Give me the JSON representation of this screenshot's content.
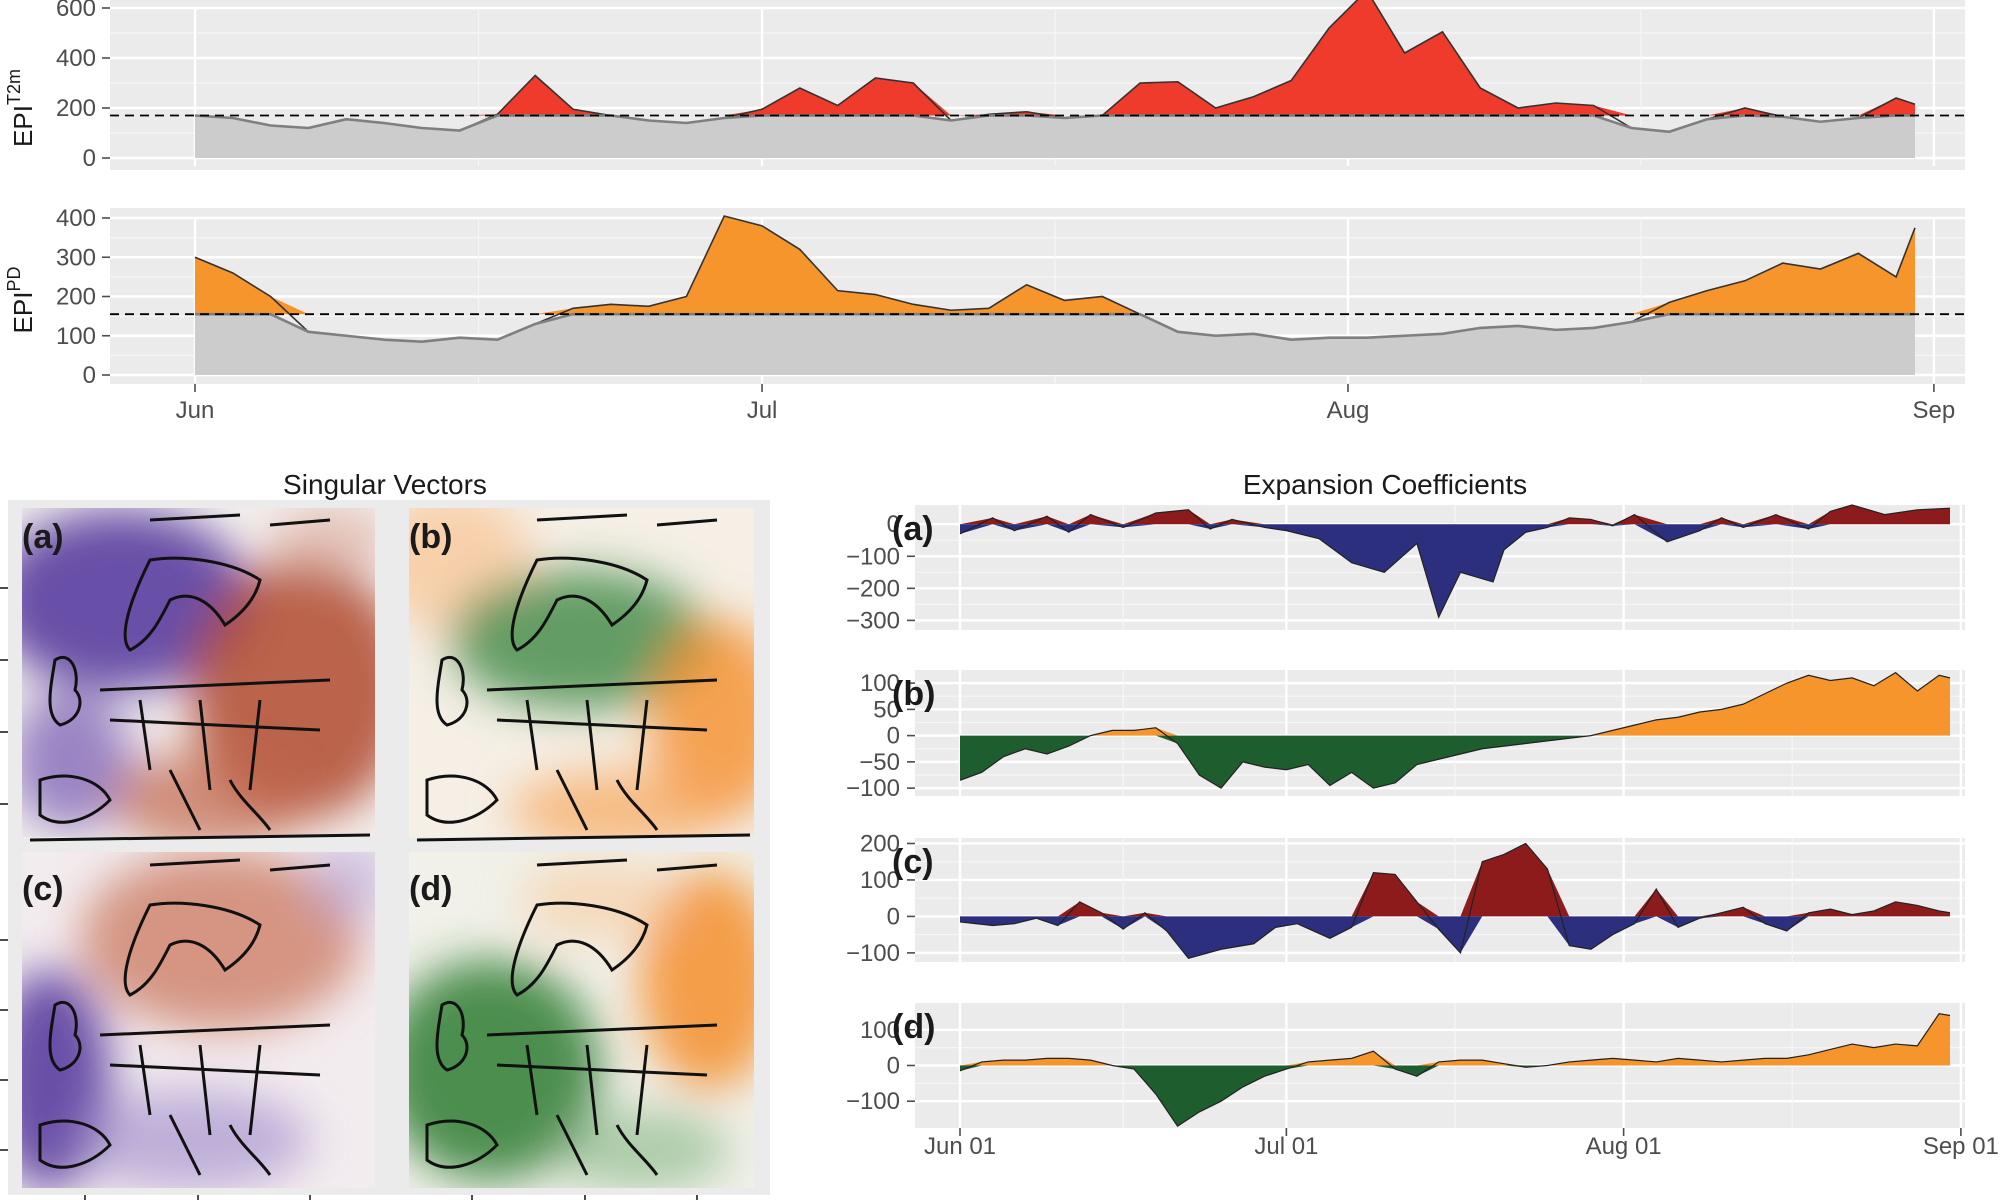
{
  "colors": {
    "t2m_fill": "#ef3b2c",
    "pd_fill": "#f7952d",
    "below_fill": "#cccccc",
    "below_line": "#7f7f7f",
    "pos_red": "#8e1b1b",
    "neg_blue": "#2b2f7d",
    "pos_orange": "#f7952d",
    "neg_green": "#1e5e2e",
    "diverging_purple": "#5a3ea0",
    "diverging_red": "#b04a2f",
    "diverging_green": "#2e7d32",
    "diverging_orange": "#f58a1f"
  },
  "chart_data": [
    {
      "id": "epi_t2m",
      "type": "area",
      "ylabel": "EPI",
      "ylabel_sup": "T2m",
      "x_axis": "day_of_summer",
      "x_range": [
        0,
        91
      ],
      "ylim": [
        0,
        600
      ],
      "yticks": [
        "0",
        "200",
        "400",
        "600"
      ],
      "threshold": 170,
      "x": [
        0,
        2,
        4,
        6,
        8,
        10,
        12,
        14,
        16,
        18,
        20,
        22,
        24,
        26,
        28,
        30,
        32,
        34,
        36,
        38,
        40,
        42,
        44,
        46,
        48,
        50,
        52,
        54,
        56,
        58,
        60,
        62,
        64,
        66,
        68,
        70,
        72,
        74,
        76,
        78,
        80,
        82,
        84,
        86,
        88,
        90,
        91
      ],
      "values": [
        170,
        160,
        130,
        120,
        155,
        140,
        120,
        110,
        175,
        330,
        195,
        170,
        150,
        140,
        160,
        195,
        280,
        210,
        320,
        300,
        150,
        175,
        185,
        160,
        170,
        300,
        305,
        200,
        245,
        310,
        520,
        670,
        420,
        505,
        280,
        200,
        220,
        210,
        120,
        105,
        155,
        200,
        165,
        145,
        160,
        240,
        215
      ],
      "grid": true
    },
    {
      "id": "epi_pd",
      "type": "area",
      "ylabel": "EPI",
      "ylabel_sup": "PD",
      "x_axis": "day_of_summer",
      "x_range": [
        0,
        91
      ],
      "ylim": [
        0,
        400
      ],
      "yticks": [
        "0",
        "100",
        "200",
        "300",
        "400"
      ],
      "threshold": 155,
      "x": [
        0,
        2,
        4,
        6,
        8,
        10,
        12,
        14,
        16,
        18,
        20,
        22,
        24,
        26,
        28,
        30,
        32,
        34,
        36,
        38,
        40,
        42,
        44,
        46,
        48,
        50,
        52,
        54,
        56,
        58,
        60,
        62,
        64,
        66,
        68,
        70,
        72,
        74,
        76,
        78,
        80,
        82,
        84,
        86,
        88,
        90,
        91
      ],
      "values": [
        300,
        260,
        200,
        110,
        100,
        90,
        85,
        95,
        90,
        130,
        170,
        180,
        175,
        200,
        405,
        380,
        320,
        215,
        205,
        180,
        165,
        170,
        230,
        190,
        200,
        155,
        110,
        100,
        105,
        90,
        95,
        95,
        100,
        105,
        120,
        125,
        115,
        120,
        135,
        185,
        215,
        240,
        285,
        270,
        310,
        250,
        375
      ],
      "grid": true
    },
    {
      "id": "ec_a",
      "type": "area",
      "panel_label": "(a)",
      "ylim": [
        -330,
        60
      ],
      "yticks": [
        "0",
        "−100",
        "−200",
        "−300"
      ],
      "x": [
        0,
        3,
        5,
        8,
        10,
        12,
        15,
        18,
        21,
        23,
        25,
        28,
        30,
        33,
        36,
        39,
        42,
        44,
        46,
        49,
        50,
        52,
        54,
        56,
        58,
        60,
        62,
        65,
        68,
        70,
        72,
        75,
        78,
        80,
        82,
        85,
        88,
        91
      ],
      "values": [
        -30,
        20,
        -20,
        25,
        -25,
        30,
        -10,
        35,
        45,
        -15,
        15,
        -10,
        -20,
        -45,
        -120,
        -150,
        -60,
        -290,
        -150,
        -180,
        -80,
        -25,
        -10,
        20,
        15,
        -5,
        30,
        -55,
        -20,
        20,
        -10,
        30,
        -15,
        40,
        60,
        30,
        45,
        50
      ],
      "pos_color_key": "pos_red",
      "neg_color_key": "neg_blue",
      "grid": true
    },
    {
      "id": "ec_b",
      "type": "area",
      "panel_label": "(b)",
      "ylim": [
        -115,
        125
      ],
      "yticks": [
        "100",
        "50",
        "0",
        "−50",
        "−100"
      ],
      "x": [
        0,
        2,
        4,
        6,
        8,
        10,
        12,
        14,
        16,
        18,
        20,
        22,
        24,
        26,
        28,
        30,
        32,
        34,
        36,
        38,
        40,
        42,
        44,
        46,
        48,
        50,
        52,
        54,
        56,
        58,
        60,
        62,
        64,
        66,
        68,
        70,
        72,
        74,
        76,
        78,
        80,
        82,
        84,
        86,
        88,
        90,
        91
      ],
      "values": [
        -85,
        -70,
        -40,
        -25,
        -35,
        -20,
        0,
        10,
        10,
        15,
        -15,
        -75,
        -100,
        -50,
        -60,
        -65,
        -55,
        -95,
        -70,
        -100,
        -90,
        -55,
        -45,
        -35,
        -25,
        -20,
        -15,
        -10,
        -5,
        0,
        10,
        20,
        30,
        35,
        45,
        50,
        60,
        80,
        100,
        115,
        105,
        110,
        95,
        120,
        85,
        115,
        110
      ],
      "pos_color_key": "pos_orange",
      "neg_color_key": "neg_green",
      "grid": true
    },
    {
      "id": "ec_c",
      "type": "area",
      "panel_label": "(c)",
      "ylim": [
        -125,
        215
      ],
      "yticks": [
        "200",
        "100",
        "0",
        "−100"
      ],
      "x": [
        0,
        3,
        5,
        7,
        9,
        11,
        13,
        15,
        17,
        19,
        21,
        24,
        27,
        29,
        31,
        34,
        36,
        38,
        40,
        42,
        44,
        46,
        48,
        50,
        52,
        54,
        56,
        58,
        60,
        62,
        64,
        66,
        68,
        70,
        72,
        74,
        76,
        78,
        80,
        82,
        84,
        86,
        88,
        90,
        91
      ],
      "values": [
        -15,
        -25,
        -20,
        -5,
        -25,
        40,
        10,
        -35,
        10,
        -40,
        -115,
        -90,
        -75,
        -30,
        -20,
        -60,
        -30,
        120,
        115,
        40,
        -35,
        -100,
        150,
        170,
        200,
        130,
        -80,
        -90,
        -50,
        -20,
        75,
        -30,
        -5,
        10,
        25,
        -20,
        -40,
        10,
        20,
        5,
        15,
        40,
        30,
        15,
        10
      ],
      "pos_color_key": "pos_red",
      "neg_color_key": "neg_blue",
      "grid": true
    },
    {
      "id": "ec_d",
      "type": "area",
      "panel_label": "(d)",
      "ylim": [
        -175,
        175
      ],
      "yticks": [
        "100",
        "0",
        "−100"
      ],
      "x": [
        0,
        2,
        4,
        6,
        8,
        10,
        12,
        14,
        16,
        18,
        20,
        22,
        24,
        26,
        28,
        30,
        32,
        34,
        36,
        38,
        40,
        42,
        44,
        46,
        48,
        50,
        52,
        54,
        56,
        58,
        60,
        62,
        64,
        66,
        68,
        70,
        72,
        74,
        76,
        78,
        80,
        82,
        84,
        86,
        88,
        90,
        91
      ],
      "values": [
        -15,
        10,
        15,
        15,
        20,
        20,
        15,
        0,
        -10,
        -80,
        -170,
        -130,
        -100,
        -60,
        -30,
        -10,
        10,
        15,
        20,
        40,
        -10,
        -30,
        10,
        15,
        15,
        5,
        -5,
        0,
        10,
        15,
        20,
        15,
        10,
        20,
        15,
        10,
        15,
        20,
        20,
        30,
        45,
        60,
        50,
        60,
        55,
        145,
        140
      ],
      "pos_color_key": "pos_orange",
      "neg_color_key": "neg_green",
      "grid": true
    }
  ],
  "top_x_ticks": [
    "Jun",
    "Jul",
    "Aug",
    "Sep"
  ],
  "ec_x_ticks": [
    "Jun 01",
    "Jul 01",
    "Aug 01",
    "Sep 01"
  ],
  "headers": {
    "singular_vectors": "Singular Vectors",
    "expansion_coefficients": "Expansion Coefficients"
  },
  "maps": [
    {
      "label": "(a)",
      "pattern": "purple-red"
    },
    {
      "label": "(b)",
      "pattern": "green-orange"
    },
    {
      "label": "(c)",
      "pattern": "purple-red"
    },
    {
      "label": "(d)",
      "pattern": "green-orange"
    }
  ]
}
